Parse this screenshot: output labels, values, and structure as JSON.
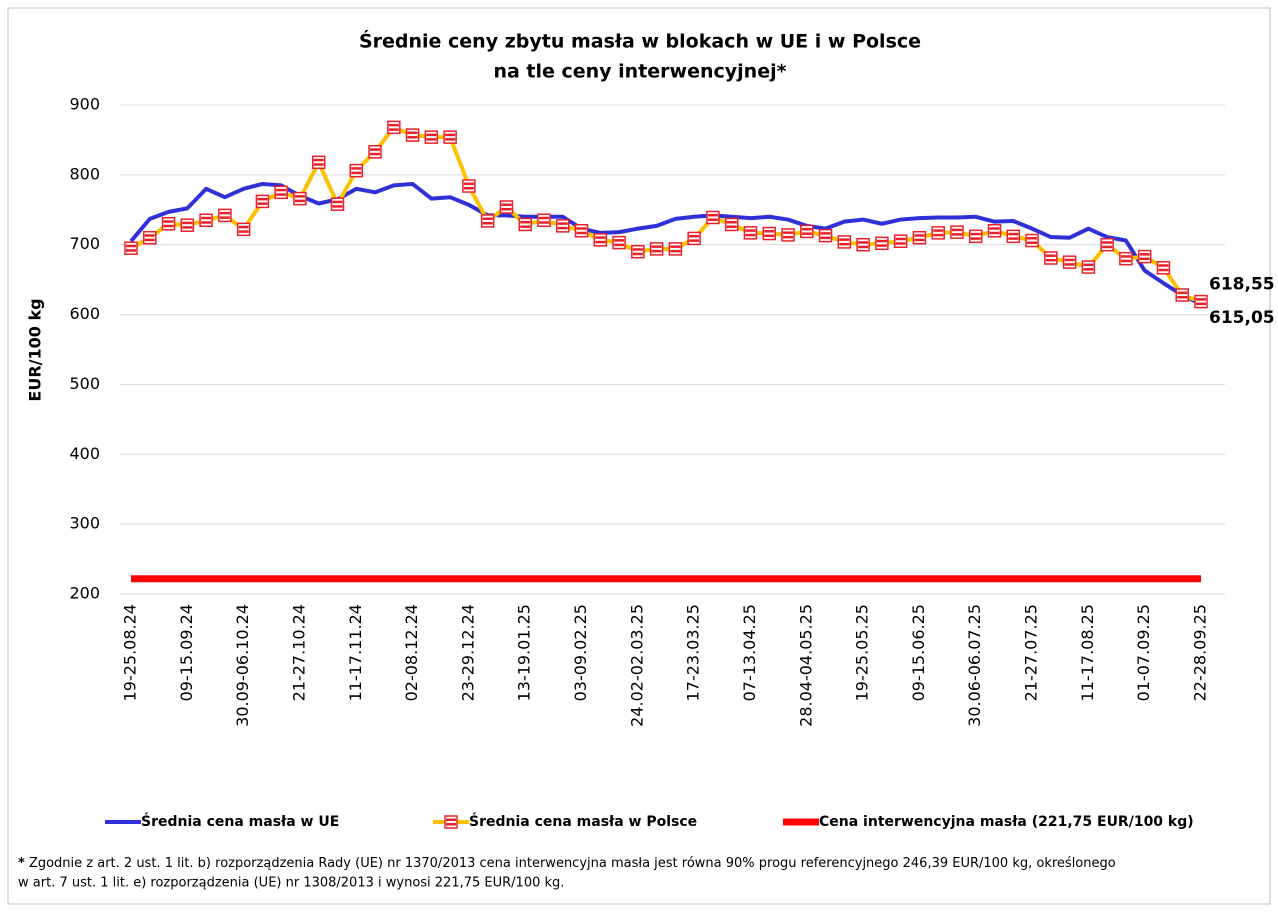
{
  "chart_data": {
    "type": "line",
    "title": [
      "Średnie ceny zbytu masła w blokach w UE i w Polsce",
      "na tle ceny interwencyjnej*"
    ],
    "ylabel": "EUR/100 kg",
    "categories": [
      "19-25.08.24",
      null,
      null,
      "09-15.09.24",
      null,
      null,
      "30.09-06.10.24",
      null,
      null,
      "21-27.10.24",
      null,
      null,
      "11-17.11.24",
      null,
      null,
      "02-08.12.24",
      null,
      null,
      "23-29.12.24",
      null,
      null,
      "13-19.01.25",
      null,
      null,
      "03-09.02.25",
      null,
      null,
      "24.02-02.03.25",
      null,
      null,
      "17-23.03.25",
      null,
      null,
      "07-13.04.25",
      null,
      null,
      "28.04-04.05.25",
      null,
      null,
      "19-25.05.25",
      null,
      null,
      "09-15.06.25",
      null,
      null,
      "30.06-06.07.25",
      null,
      null,
      "21-27.07.25",
      null,
      null,
      "11-17.08.25",
      null,
      null,
      "01-07.09.25",
      null,
      null,
      "22-28.09.25"
    ],
    "ylim": [
      200,
      900
    ],
    "yticks": [
      200,
      300,
      400,
      500,
      600,
      700,
      800,
      900
    ],
    "grid": true,
    "legend": "bottom",
    "series": [
      {
        "name": "Średnia cena masła w UE",
        "color": "#3030d8",
        "marker": false,
        "values": [
          705,
          737,
          747,
          752,
          780,
          768,
          780,
          787,
          785,
          770,
          759,
          765,
          780,
          775,
          785,
          787,
          766,
          768,
          757,
          742,
          742,
          740,
          740,
          740,
          723,
          717,
          718,
          723,
          727,
          737,
          740,
          742,
          740,
          738,
          740,
          736,
          727,
          723,
          733,
          736,
          730,
          736,
          738,
          739,
          739,
          740,
          733,
          734,
          723,
          711,
          710,
          723,
          711,
          706,
          663,
          645,
          628,
          615.05
        ],
        "value_labels": [
          null,
          null,
          null,
          null,
          null,
          null,
          null,
          null,
          null,
          null,
          null,
          null,
          null,
          null,
          null,
          null,
          null,
          null,
          null,
          null,
          null,
          null,
          null,
          null,
          null,
          null,
          null,
          null,
          null,
          null,
          null,
          null,
          null,
          null,
          null,
          null,
          null,
          null,
          null,
          null,
          null,
          null,
          null,
          null,
          null,
          null,
          null,
          null,
          null,
          null,
          null,
          null,
          null,
          null,
          null,
          null,
          null,
          "615,05"
        ]
      },
      {
        "name": "Średnia cena masła w Polsce",
        "color": "#ffc000",
        "marker": true,
        "marker_color": "#e8202a",
        "values": [
          695,
          710,
          730,
          728,
          735,
          742,
          722,
          762,
          775,
          766,
          818,
          758,
          806,
          833,
          868,
          857,
          854,
          854,
          784,
          734,
          754,
          729,
          735,
          727,
          720,
          707,
          703,
          690,
          694,
          694,
          709,
          739,
          729,
          717,
          716,
          714,
          719,
          713,
          704,
          700,
          702,
          705,
          710,
          717,
          718,
          712,
          720,
          712,
          706,
          681,
          675,
          668,
          700,
          680,
          683,
          667,
          628,
          618.55
        ],
        "value_labels": [
          null,
          null,
          null,
          null,
          null,
          null,
          null,
          null,
          null,
          null,
          null,
          null,
          null,
          null,
          null,
          null,
          null,
          null,
          null,
          null,
          null,
          null,
          null,
          null,
          null,
          null,
          null,
          null,
          null,
          null,
          null,
          null,
          null,
          null,
          null,
          null,
          null,
          null,
          null,
          null,
          null,
          null,
          null,
          null,
          null,
          null,
          null,
          null,
          null,
          null,
          null,
          null,
          null,
          null,
          null,
          null,
          null,
          "618,55"
        ]
      },
      {
        "name": "Cena interwencyjna masła (221,75 EUR/100 kg)",
        "color": "#ff0000",
        "marker": false,
        "width": 7,
        "values": [
          221.75,
          221.75,
          221.75,
          221.75,
          221.75,
          221.75,
          221.75,
          221.75,
          221.75,
          221.75,
          221.75,
          221.75,
          221.75,
          221.75,
          221.75,
          221.75,
          221.75,
          221.75,
          221.75,
          221.75,
          221.75,
          221.75,
          221.75,
          221.75,
          221.75,
          221.75,
          221.75,
          221.75,
          221.75,
          221.75,
          221.75,
          221.75,
          221.75,
          221.75,
          221.75,
          221.75,
          221.75,
          221.75,
          221.75,
          221.75,
          221.75,
          221.75,
          221.75,
          221.75,
          221.75,
          221.75,
          221.75,
          221.75,
          221.75,
          221.75,
          221.75,
          221.75,
          221.75,
          221.75,
          221.75,
          221.75,
          221.75,
          221.75
        ]
      }
    ],
    "footnote_marker": "*",
    "footnote": [
      " Zgodnie z art. 2 ust. 1 lit. b)  rozporządzenia Rady (UE) nr 1370/2013 cena interwencyjna masła jest równa 90% progu referencyjnego 246,39 EUR/100 kg, określonego",
      "w art. 7 ust. 1 lit. e) rozporządzenia (UE) nr 1308/2013 i wynosi 221,75 EUR/100 kg."
    ]
  }
}
